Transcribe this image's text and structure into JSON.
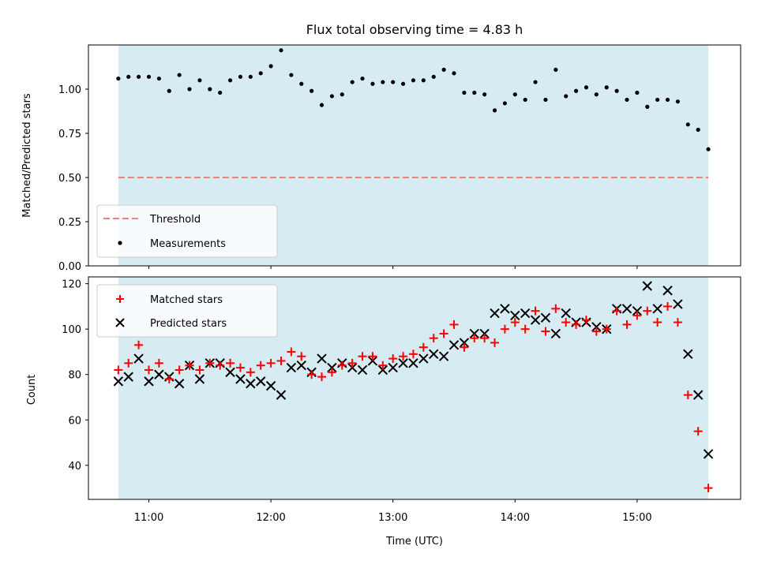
{
  "chart_data": [
    {
      "type": "scatter",
      "title": "Flux total observing time = 4.83 h",
      "xlabel": "",
      "ylabel": "Matched/Predicted stars",
      "ylim": [
        0,
        1.25
      ],
      "yticks": [
        "0.00",
        "0.25",
        "0.50",
        "0.75",
        "1.00"
      ],
      "shaded_span": [
        "10:45",
        "15:35"
      ],
      "colors": {
        "span": "#add8e6",
        "threshold": "#f08080",
        "points": "#000000"
      },
      "threshold": {
        "name": "Threshold",
        "value": 0.5
      },
      "series": [
        {
          "name": "Measurements",
          "x": [
            "10:45",
            "10:50",
            "10:55",
            "11:00",
            "11:05",
            "11:10",
            "11:15",
            "11:20",
            "11:25",
            "11:30",
            "11:35",
            "11:40",
            "11:45",
            "11:50",
            "11:55",
            "12:00",
            "12:05",
            "12:10",
            "12:15",
            "12:20",
            "12:25",
            "12:30",
            "12:35",
            "12:40",
            "12:45",
            "12:50",
            "12:55",
            "13:00",
            "13:05",
            "13:10",
            "13:15",
            "13:20",
            "13:25",
            "13:30",
            "13:35",
            "13:40",
            "13:45",
            "13:50",
            "13:55",
            "14:00",
            "14:05",
            "14:10",
            "14:15",
            "14:20",
            "14:25",
            "14:30",
            "14:35",
            "14:40",
            "14:45",
            "14:50",
            "14:55",
            "15:00",
            "15:05",
            "15:10",
            "15:15",
            "15:20",
            "15:25",
            "15:30",
            "15:35"
          ],
          "y": [
            1.06,
            1.07,
            1.07,
            1.07,
            1.06,
            0.99,
            1.08,
            1.0,
            1.05,
            1.0,
            0.98,
            1.05,
            1.07,
            1.07,
            1.09,
            1.13,
            1.22,
            1.08,
            1.03,
            0.99,
            0.91,
            0.96,
            0.97,
            1.04,
            1.06,
            1.03,
            1.04,
            1.04,
            1.03,
            1.05,
            1.05,
            1.07,
            1.11,
            1.09,
            0.98,
            0.98,
            0.97,
            0.88,
            0.92,
            0.97,
            0.94,
            1.04,
            0.94,
            1.11,
            0.96,
            0.99,
            1.01,
            0.97,
            1.01,
            0.99,
            0.94,
            0.98,
            0.9,
            0.94,
            0.94,
            0.93,
            0.8,
            0.77,
            0.66
          ]
        }
      ]
    },
    {
      "type": "scatter",
      "title": "",
      "xlabel": "Time (UTC)",
      "ylabel": "Count",
      "ylim": [
        25,
        123
      ],
      "yticks": [
        "40",
        "60",
        "80",
        "100",
        "120"
      ],
      "xticks": [
        "11:00",
        "12:00",
        "13:00",
        "14:00",
        "15:00"
      ],
      "shaded_span": [
        "10:45",
        "15:35"
      ],
      "colors": {
        "span": "#add8e6",
        "matched": "#ff0000",
        "predicted": "#000000"
      },
      "series": [
        {
          "name": "Matched stars",
          "marker": "plus",
          "x": [
            "10:45",
            "10:50",
            "10:55",
            "11:00",
            "11:05",
            "11:10",
            "11:15",
            "11:20",
            "11:25",
            "11:30",
            "11:35",
            "11:40",
            "11:45",
            "11:50",
            "11:55",
            "12:00",
            "12:05",
            "12:10",
            "12:15",
            "12:20",
            "12:25",
            "12:30",
            "12:35",
            "12:40",
            "12:45",
            "12:50",
            "12:55",
            "13:00",
            "13:05",
            "13:10",
            "13:15",
            "13:20",
            "13:25",
            "13:30",
            "13:35",
            "13:40",
            "13:45",
            "13:50",
            "13:55",
            "14:00",
            "14:05",
            "14:10",
            "14:15",
            "14:20",
            "14:25",
            "14:30",
            "14:35",
            "14:40",
            "14:45",
            "14:50",
            "14:55",
            "15:00",
            "15:05",
            "15:10",
            "15:15",
            "15:20",
            "15:25",
            "15:30",
            "15:35"
          ],
          "y": [
            82,
            85,
            93,
            82,
            85,
            78,
            82,
            84,
            82,
            85,
            84,
            85,
            83,
            81,
            84,
            85,
            86,
            90,
            88,
            80,
            79,
            81,
            84,
            85,
            88,
            88,
            84,
            87,
            88,
            89,
            92,
            96,
            98,
            102,
            92,
            96,
            96,
            94,
            100,
            103,
            100,
            108,
            99,
            109,
            103,
            102,
            104,
            99,
            100,
            108,
            102,
            106,
            108,
            103,
            110,
            103,
            71,
            55,
            30
          ]
        },
        {
          "name": "Predicted stars",
          "marker": "x",
          "x": [
            "10:45",
            "10:50",
            "10:55",
            "11:00",
            "11:05",
            "11:10",
            "11:15",
            "11:20",
            "11:25",
            "11:30",
            "11:35",
            "11:40",
            "11:45",
            "11:50",
            "11:55",
            "12:00",
            "12:05",
            "12:10",
            "12:15",
            "12:20",
            "12:25",
            "12:30",
            "12:35",
            "12:40",
            "12:45",
            "12:50",
            "12:55",
            "13:00",
            "13:05",
            "13:10",
            "13:15",
            "13:20",
            "13:25",
            "13:30",
            "13:35",
            "13:40",
            "13:45",
            "13:50",
            "13:55",
            "14:00",
            "14:05",
            "14:10",
            "14:15",
            "14:20",
            "14:25",
            "14:30",
            "14:35",
            "14:40",
            "14:45",
            "14:50",
            "14:55",
            "15:00",
            "15:05",
            "15:10",
            "15:15",
            "15:20",
            "15:25",
            "15:30",
            "15:35"
          ],
          "y": [
            77,
            79,
            87,
            77,
            80,
            79,
            76,
            84,
            78,
            85,
            85,
            81,
            78,
            76,
            77,
            75,
            71,
            83,
            84,
            81,
            87,
            83,
            85,
            83,
            82,
            86,
            82,
            83,
            85,
            85,
            87,
            89,
            88,
            93,
            94,
            98,
            98,
            107,
            109,
            106,
            107,
            104,
            105,
            98,
            107,
            103,
            103,
            101,
            100,
            109,
            109,
            108,
            119,
            109,
            117,
            111,
            89,
            71,
            45
          ]
        }
      ]
    }
  ]
}
